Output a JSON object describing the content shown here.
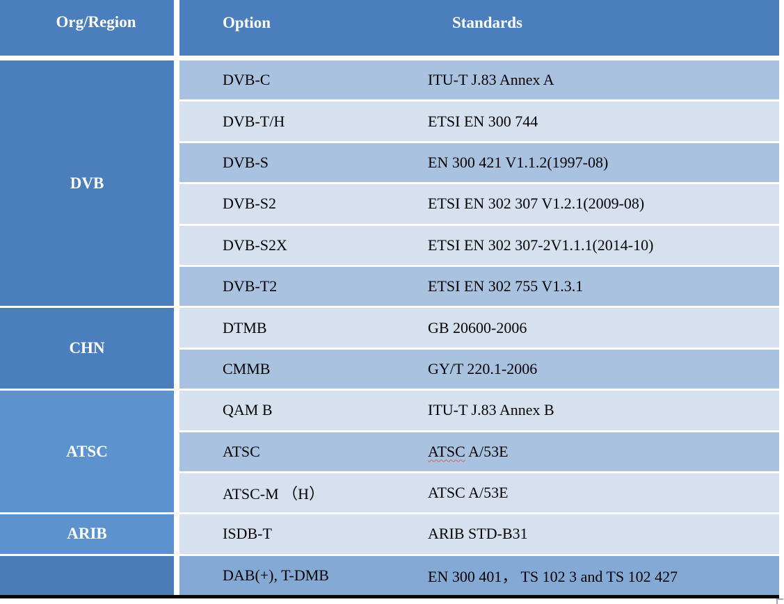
{
  "table": {
    "headers": {
      "org": "Org/Region",
      "option": "Option",
      "standards": "Standards"
    },
    "groups": [
      {
        "label": "DVB",
        "rows": 6
      },
      {
        "label": "CHN",
        "rows": 2
      },
      {
        "label": "ATSC",
        "rows": 3
      },
      {
        "label": "ARIB",
        "rows": 1
      },
      {
        "label": "",
        "rows": 1
      }
    ],
    "rows": [
      {
        "option": "DVB-C",
        "standards": "ITU-T J.83 Annex A",
        "tone": "medium"
      },
      {
        "option": "DVB-T/H",
        "standards": "ETSI EN 300 744",
        "tone": "light"
      },
      {
        "option": "DVB-S",
        "standards": "EN 300 421 V1.1.2(1997-08)",
        "tone": "medium"
      },
      {
        "option": "DVB-S2",
        "standards": "ETSI EN 302 307 V1.2.1(2009-08)",
        "tone": "light"
      },
      {
        "option": "DVB-S2X",
        "standards": "ETSI EN 302 307-2V1.1.1(2014-10)",
        "tone": "light"
      },
      {
        "option": "DVB-T2",
        "standards": "ETSI EN 302 755 V1.3.1",
        "tone": "medium"
      },
      {
        "option": "DTMB",
        "standards": "GB 20600-2006",
        "tone": "light"
      },
      {
        "option": "CMMB",
        "standards": "GY/T 220.1-2006",
        "tone": "medium"
      },
      {
        "option": "QAM B",
        "standards": "ITU-T J.83 Annex B",
        "tone": "light"
      },
      {
        "option": "ATSC",
        "standards": "ATSC A/53E",
        "standards_flagged": "ATSC",
        "standards_rest": " A/53E",
        "tone": "medium"
      },
      {
        "option": "ATSC-M （H）",
        "standards": "ATSC A/53E",
        "tone": "light"
      },
      {
        "option": "ISDB-T",
        "standards": "ARIB STD-B31",
        "tone": "light"
      },
      {
        "option": "DAB(+), T-DMB",
        "standards": "EN 300 401， TS 102 3 and TS 102 427",
        "tone": "deep"
      }
    ]
  },
  "colors": {
    "header_blue": "#4b7ebc",
    "org_group_light_blue": "#5c92ce",
    "org_bottom_blue": "#4a7cb5",
    "row_medium_blue": "#a9c2e0",
    "row_light_blue": "#d6e0ef",
    "row_deep_blue": "#83a9d4",
    "spellcheck_red": "#d86060",
    "bottom_border_black": "#0a0a0a"
  }
}
